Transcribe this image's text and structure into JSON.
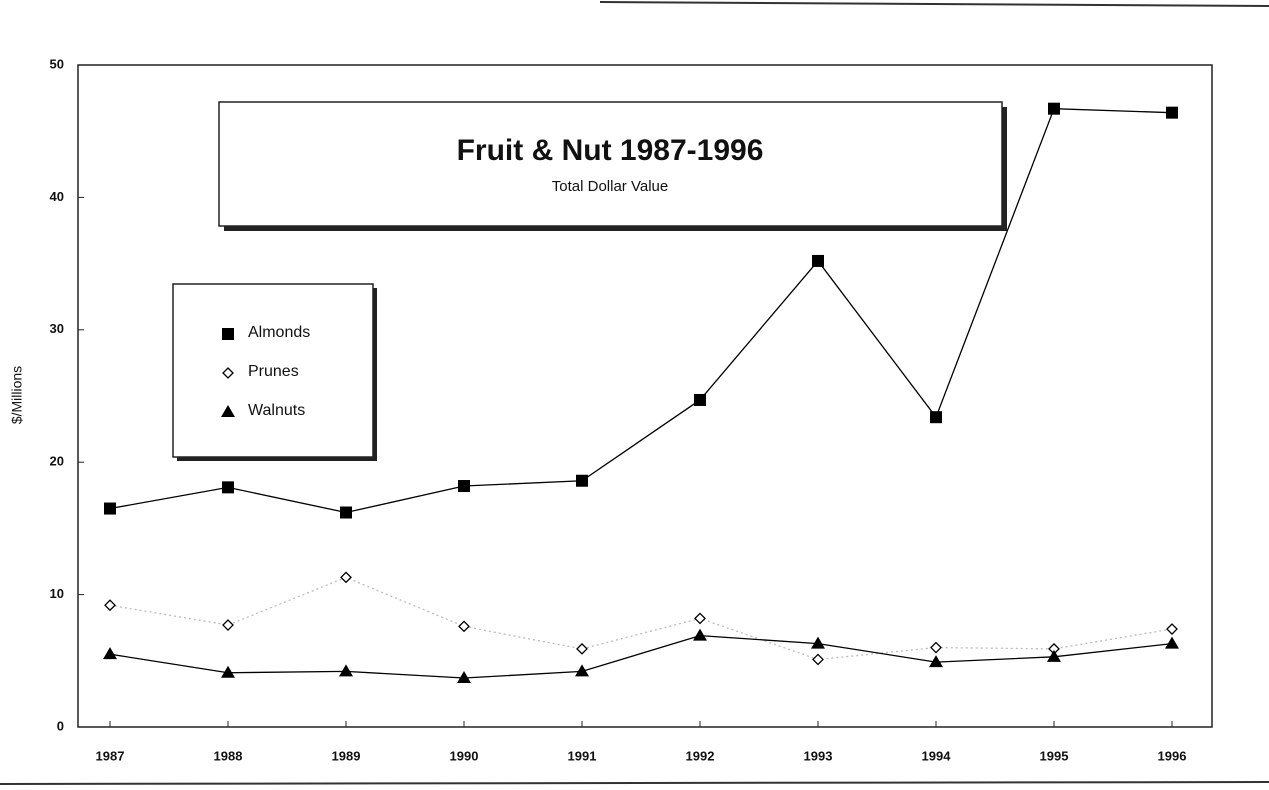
{
  "chart_data": {
    "type": "line",
    "title": "Fruit & Nut 1987-1996",
    "subtitle": "Total Dollar Value",
    "y_label": "$/Millions",
    "categories": [
      "1987",
      "1988",
      "1989",
      "1990",
      "1991",
      "1992",
      "1993",
      "1994",
      "1995",
      "1996"
    ],
    "series": [
      {
        "name": "Almonds",
        "color": "#000000",
        "marker": "square",
        "line": "solid",
        "values": [
          16.5,
          18.1,
          16.2,
          18.2,
          18.6,
          24.7,
          35.2,
          23.4,
          46.7,
          46.4
        ]
      },
      {
        "name": "Prunes",
        "color": "#000000",
        "marker": "diamond",
        "line": "dotted",
        "values": [
          9.2,
          7.7,
          11.3,
          7.6,
          5.9,
          8.2,
          5.1,
          6.0,
          5.9,
          7.4
        ]
      },
      {
        "name": "Walnuts",
        "color": "#000000",
        "marker": "triangle",
        "line": "solid",
        "values": [
          5.5,
          4.1,
          4.2,
          3.7,
          4.2,
          6.9,
          6.3,
          4.9,
          5.3,
          6.3
        ]
      }
    ],
    "ylim": [
      0,
      50
    ],
    "yticks": [
      0,
      10,
      20,
      30,
      40,
      50
    ],
    "grid": false
  }
}
